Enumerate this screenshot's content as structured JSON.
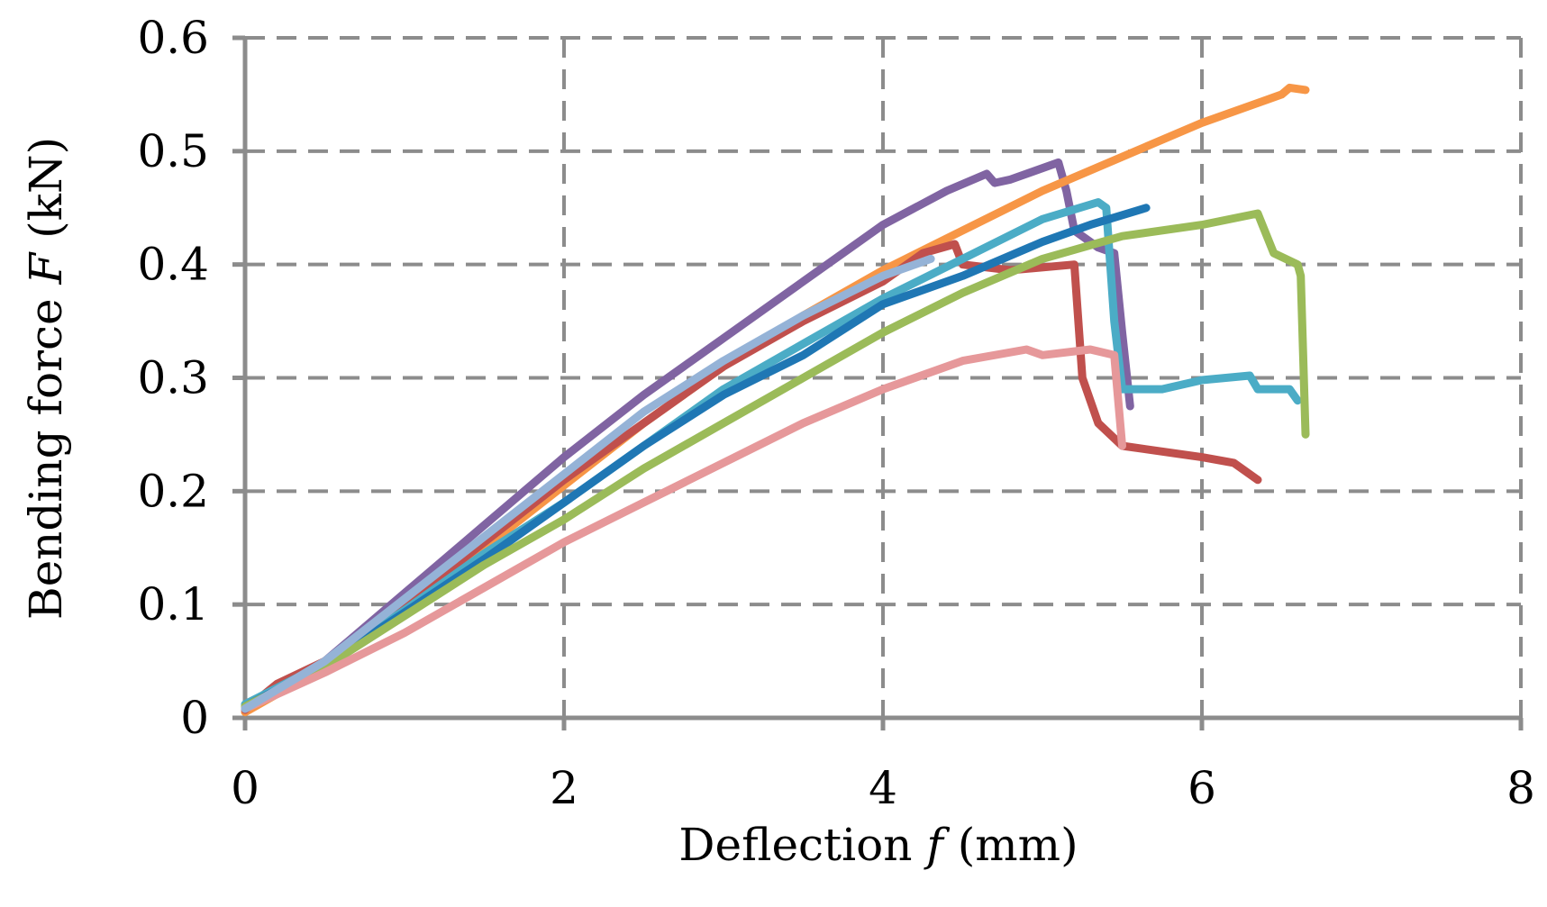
{
  "chart_data": {
    "type": "line",
    "title": "",
    "xlabel": {
      "pre": "Deflection ",
      "var": "f",
      "post": " (mm)"
    },
    "ylabel": {
      "pre": "Bending force ",
      "var": "F",
      "post": " (kN)"
    },
    "xlim": [
      0,
      8
    ],
    "ylim": [
      0,
      0.6
    ],
    "xticks": [
      0,
      2,
      4,
      6,
      8
    ],
    "yticks": [
      0,
      0.1,
      0.2,
      0.3,
      0.4,
      0.5,
      0.6
    ],
    "xtick_labels": [
      "0",
      "2",
      "4",
      "6",
      "8"
    ],
    "ytick_labels": [
      "0",
      "0.1",
      "0.2",
      "0.3",
      "0.4",
      "0.5",
      "0.6"
    ],
    "grid": true,
    "grid_style": "dashed",
    "legend": "none",
    "series": [
      {
        "color": "#8064A2",
        "points": [
          [
            0,
            0.008
          ],
          [
            0.5,
            0.05
          ],
          [
            1.0,
            0.11
          ],
          [
            1.5,
            0.17
          ],
          [
            2.0,
            0.23
          ],
          [
            2.5,
            0.285
          ],
          [
            3.0,
            0.335
          ],
          [
            3.5,
            0.385
          ],
          [
            4.0,
            0.435
          ],
          [
            4.4,
            0.465
          ],
          [
            4.65,
            0.48
          ],
          [
            4.7,
            0.472
          ],
          [
            4.8,
            0.475
          ],
          [
            5.1,
            0.49
          ],
          [
            5.15,
            0.465
          ],
          [
            5.2,
            0.43
          ],
          [
            5.35,
            0.415
          ],
          [
            5.45,
            0.41
          ],
          [
            5.5,
            0.34
          ],
          [
            5.55,
            0.275
          ]
        ]
      },
      {
        "color": "#F79646",
        "points": [
          [
            0,
            0.005
          ],
          [
            0.5,
            0.045
          ],
          [
            1.0,
            0.095
          ],
          [
            1.5,
            0.15
          ],
          [
            2.0,
            0.205
          ],
          [
            2.5,
            0.26
          ],
          [
            3.0,
            0.31
          ],
          [
            3.5,
            0.355
          ],
          [
            4.0,
            0.395
          ],
          [
            4.5,
            0.43
          ],
          [
            5.0,
            0.465
          ],
          [
            5.5,
            0.495
          ],
          [
            6.0,
            0.525
          ],
          [
            6.5,
            0.55
          ],
          [
            6.55,
            0.556
          ],
          [
            6.65,
            0.554
          ]
        ]
      },
      {
        "color": "#C0504D",
        "points": [
          [
            0,
            0.007
          ],
          [
            0.2,
            0.03
          ],
          [
            0.5,
            0.05
          ],
          [
            1.0,
            0.1
          ],
          [
            1.5,
            0.155
          ],
          [
            2.0,
            0.21
          ],
          [
            2.5,
            0.26
          ],
          [
            3.0,
            0.31
          ],
          [
            3.5,
            0.35
          ],
          [
            4.0,
            0.385
          ],
          [
            4.25,
            0.41
          ],
          [
            4.45,
            0.418
          ],
          [
            4.5,
            0.4
          ],
          [
            4.8,
            0.395
          ],
          [
            5.2,
            0.4
          ],
          [
            5.25,
            0.3
          ],
          [
            5.35,
            0.26
          ],
          [
            5.5,
            0.24
          ],
          [
            6.0,
            0.23
          ],
          [
            6.2,
            0.225
          ],
          [
            6.35,
            0.21
          ]
        ]
      },
      {
        "color": "#4BACC6",
        "points": [
          [
            0,
            0.012
          ],
          [
            0.5,
            0.048
          ],
          [
            1.0,
            0.095
          ],
          [
            1.5,
            0.145
          ],
          [
            2.0,
            0.19
          ],
          [
            2.5,
            0.24
          ],
          [
            3.0,
            0.29
          ],
          [
            3.5,
            0.33
          ],
          [
            4.0,
            0.37
          ],
          [
            4.5,
            0.405
          ],
          [
            5.0,
            0.44
          ],
          [
            5.35,
            0.455
          ],
          [
            5.4,
            0.45
          ],
          [
            5.45,
            0.35
          ],
          [
            5.5,
            0.29
          ],
          [
            5.75,
            0.29
          ],
          [
            6.0,
            0.298
          ],
          [
            6.3,
            0.302
          ],
          [
            6.35,
            0.29
          ],
          [
            6.55,
            0.29
          ],
          [
            6.6,
            0.28
          ]
        ]
      },
      {
        "color": "#1F77B4",
        "points": [
          [
            0,
            0.01
          ],
          [
            0.5,
            0.047
          ],
          [
            1.0,
            0.093
          ],
          [
            1.5,
            0.14
          ],
          [
            2.0,
            0.19
          ],
          [
            2.5,
            0.24
          ],
          [
            3.0,
            0.285
          ],
          [
            3.5,
            0.32
          ],
          [
            4.0,
            0.365
          ],
          [
            4.5,
            0.39
          ],
          [
            5.0,
            0.42
          ],
          [
            5.3,
            0.435
          ],
          [
            5.65,
            0.45
          ]
        ]
      },
      {
        "color": "#9BBB59",
        "points": [
          [
            0,
            0.01
          ],
          [
            0.5,
            0.045
          ],
          [
            1.0,
            0.09
          ],
          [
            1.5,
            0.135
          ],
          [
            2.0,
            0.175
          ],
          [
            2.5,
            0.22
          ],
          [
            3.0,
            0.26
          ],
          [
            3.5,
            0.3
          ],
          [
            4.0,
            0.34
          ],
          [
            4.5,
            0.375
          ],
          [
            5.0,
            0.405
          ],
          [
            5.5,
            0.425
          ],
          [
            6.0,
            0.435
          ],
          [
            6.35,
            0.445
          ],
          [
            6.45,
            0.41
          ],
          [
            6.6,
            0.4
          ],
          [
            6.62,
            0.39
          ],
          [
            6.65,
            0.25
          ]
        ]
      },
      {
        "color": "#E6989A",
        "points": [
          [
            0,
            0.008
          ],
          [
            0.5,
            0.04
          ],
          [
            1.0,
            0.075
          ],
          [
            1.5,
            0.115
          ],
          [
            2.0,
            0.155
          ],
          [
            2.5,
            0.19
          ],
          [
            3.0,
            0.225
          ],
          [
            3.5,
            0.26
          ],
          [
            4.0,
            0.29
          ],
          [
            4.5,
            0.315
          ],
          [
            4.9,
            0.325
          ],
          [
            5.0,
            0.32
          ],
          [
            5.3,
            0.325
          ],
          [
            5.45,
            0.32
          ],
          [
            5.5,
            0.24
          ]
        ]
      },
      {
        "color": "#95B3D7",
        "points": [
          [
            0,
            0.008
          ],
          [
            0.5,
            0.05
          ],
          [
            1.0,
            0.105
          ],
          [
            1.5,
            0.16
          ],
          [
            2.0,
            0.215
          ],
          [
            2.5,
            0.27
          ],
          [
            3.0,
            0.315
          ],
          [
            3.5,
            0.355
          ],
          [
            4.0,
            0.39
          ],
          [
            4.3,
            0.405
          ]
        ]
      }
    ]
  }
}
